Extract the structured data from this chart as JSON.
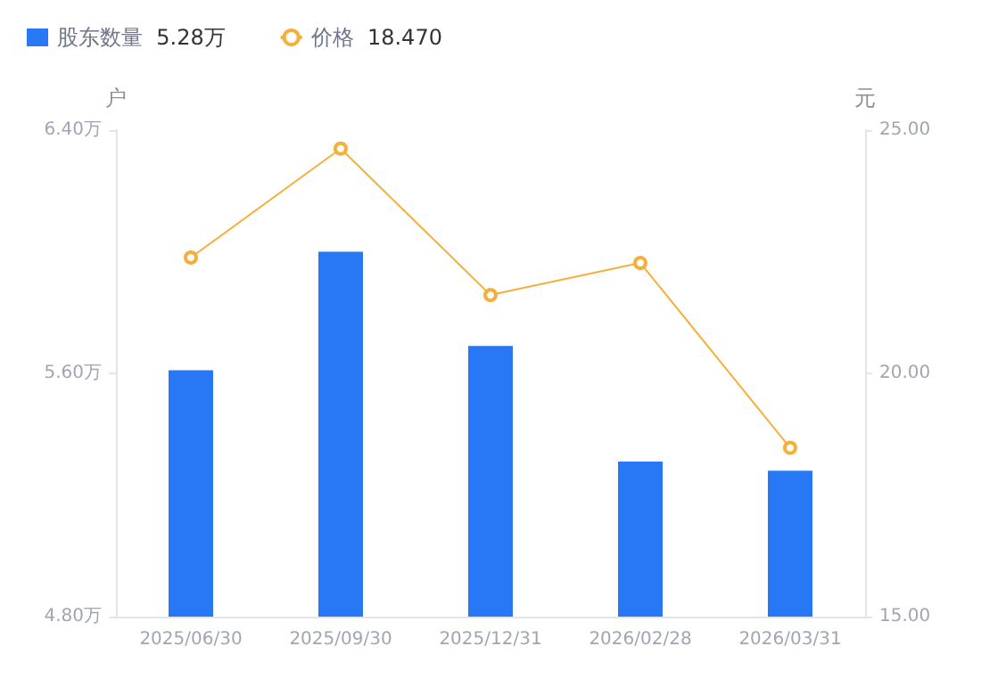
{
  "chart_data": {
    "type": "bar",
    "ylabel": "户",
    "y2label": "元",
    "annotations": [
      "5.28万",
      "18.470"
    ],
    "categories": [
      "2025/06/30",
      "2025/09/30",
      "2025/12/31",
      "2026/02/28",
      "2026/03/31"
    ],
    "series": [
      {
        "name": "股东数量",
        "color": "#2878f5",
        "values": [
          5.61,
          6.0,
          5.69,
          5.31,
          5.28
        ]
      },
      {
        "name": "价格",
        "type": "line",
        "axis": "y2",
        "color": "#f5b03c",
        "values": [
          22.38,
          24.62,
          21.61,
          22.27,
          18.47
        ]
      }
    ],
    "ylim": [
      4.8,
      6.4
    ],
    "yticks": [
      {
        "value": 4.8,
        "label": "4.80万"
      },
      {
        "value": 5.6,
        "label": "5.60万"
      },
      {
        "value": 6.4,
        "label": "6.40万"
      }
    ],
    "y2lim": [
      15,
      25
    ],
    "y2ticks": [
      {
        "value": 15,
        "label": "15.00"
      },
      {
        "value": 20,
        "label": "20.00"
      },
      {
        "value": 25,
        "label": "25.00"
      }
    ],
    "grid": false,
    "legend": "top left",
    "marker": "circle",
    "line_style": "solid"
  }
}
